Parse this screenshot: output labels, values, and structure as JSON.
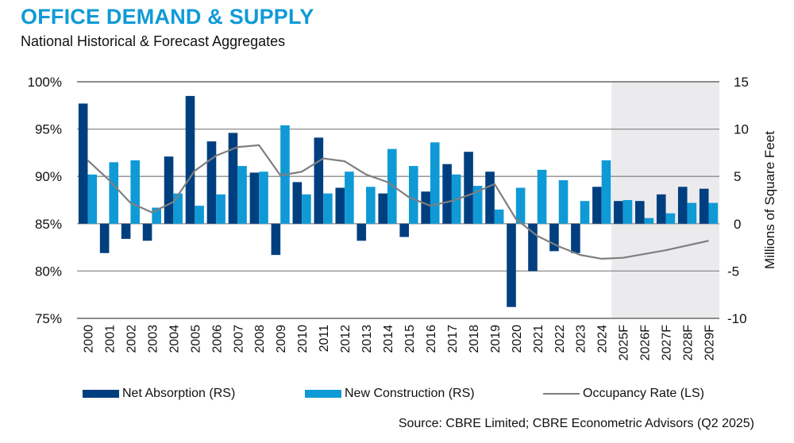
{
  "header": {
    "title": "OFFICE DEMAND & SUPPLY",
    "subtitle": "National Historical & Forecast Aggregates"
  },
  "footer": {
    "source": "Source: CBRE Limited; CBRE Econometric Advisors (Q2 2025)"
  },
  "colors": {
    "net_absorption": "#003f7f",
    "new_construction": "#0f9ad6",
    "occupancy": "#7f7f7f",
    "forecast_shade": "#ebebee",
    "grid": "#8c8c8c"
  },
  "chart_data": {
    "type": "bar",
    "title": "OFFICE DEMAND & SUPPLY",
    "subtitle": "National Historical & Forecast Aggregates",
    "categories": [
      "2000",
      "2001",
      "2002",
      "2003",
      "2004",
      "2005",
      "2006",
      "2007",
      "2008",
      "2009",
      "2010",
      "2011",
      "2012",
      "2013",
      "2014",
      "2015",
      "2016",
      "2017",
      "2018",
      "2019",
      "2020",
      "2021",
      "2022",
      "2023",
      "2024",
      "2025F",
      "2026F",
      "2027F",
      "2028F",
      "2029F"
    ],
    "forecast_start": "2025F",
    "y_left": {
      "label": "",
      "ticks": [
        "100%",
        "95%",
        "90%",
        "85%",
        "80%",
        "75%"
      ],
      "range": [
        75,
        100
      ],
      "unit": "%"
    },
    "y_right": {
      "label": "Millions of Square Feet",
      "ticks": [
        "15",
        "10",
        "5",
        "0",
        "-5",
        "-10"
      ],
      "range": [
        -10,
        15
      ]
    },
    "grid": true,
    "legend_position": "bottom",
    "series": [
      {
        "name": "Net Absorption (RS)",
        "type": "bar",
        "axis": "right",
        "values": [
          12.7,
          -3.1,
          -1.6,
          -1.8,
          7.1,
          13.5,
          8.7,
          9.6,
          5.4,
          -3.3,
          4.4,
          9.1,
          3.8,
          -1.8,
          3.2,
          -1.4,
          3.4,
          6.3,
          7.6,
          5.5,
          -8.8,
          -5.0,
          -2.9,
          -3.1,
          3.9,
          2.4,
          2.4,
          3.1,
          3.9,
          3.7
        ]
      },
      {
        "name": "New Construction (RS)",
        "type": "bar",
        "axis": "right",
        "values": [
          5.2,
          6.5,
          6.7,
          1.7,
          3.2,
          1.9,
          3.1,
          6.1,
          5.5,
          10.4,
          3.1,
          3.2,
          5.5,
          3.9,
          7.9,
          6.1,
          8.6,
          5.2,
          4.0,
          1.5,
          3.8,
          5.7,
          4.6,
          2.4,
          6.7,
          2.5,
          0.6,
          1.1,
          2.2,
          2.2
        ]
      },
      {
        "name": "Occupancy Rate (LS)",
        "type": "line",
        "axis": "left",
        "values": [
          91.7,
          89.6,
          87.2,
          86.2,
          87.3,
          90.6,
          92.2,
          93.1,
          93.3,
          90.1,
          90.5,
          91.9,
          91.6,
          90.2,
          89.4,
          87.8,
          86.9,
          87.4,
          88.2,
          89.2,
          85.5,
          83.7,
          82.6,
          81.7,
          81.3,
          81.4,
          81.8,
          82.2,
          82.7,
          83.2
        ]
      }
    ]
  }
}
